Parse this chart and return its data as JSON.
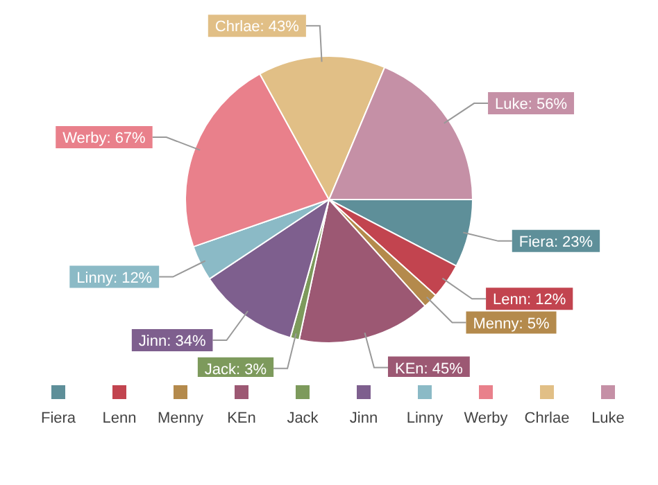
{
  "chart_data": {
    "type": "pie",
    "categories": [
      "Fiera",
      "Lenn",
      "Menny",
      "KEn",
      "Jack",
      "Jinn",
      "Linny",
      "Werby",
      "Chrlae",
      "Luke"
    ],
    "values": [
      23,
      12,
      5,
      45,
      3,
      34,
      12,
      67,
      43,
      56
    ],
    "value_labels": [
      "Fiera: 23%",
      "Lenn: 12%",
      "Menny: 5%",
      "KEn: 45%",
      "Jack: 3%",
      "Jinn: 34%",
      "Linny: 12%",
      "Werby: 67%",
      "Chrlae: 43%",
      "Luke: 56%"
    ],
    "colors": [
      "#5e8f99",
      "#c2444f",
      "#b48a4c",
      "#9c5873",
      "#7d9a5c",
      "#7e5f8e",
      "#8bbac6",
      "#e9808b",
      "#e1bf86",
      "#c590a6"
    ],
    "legend": "bottom"
  }
}
